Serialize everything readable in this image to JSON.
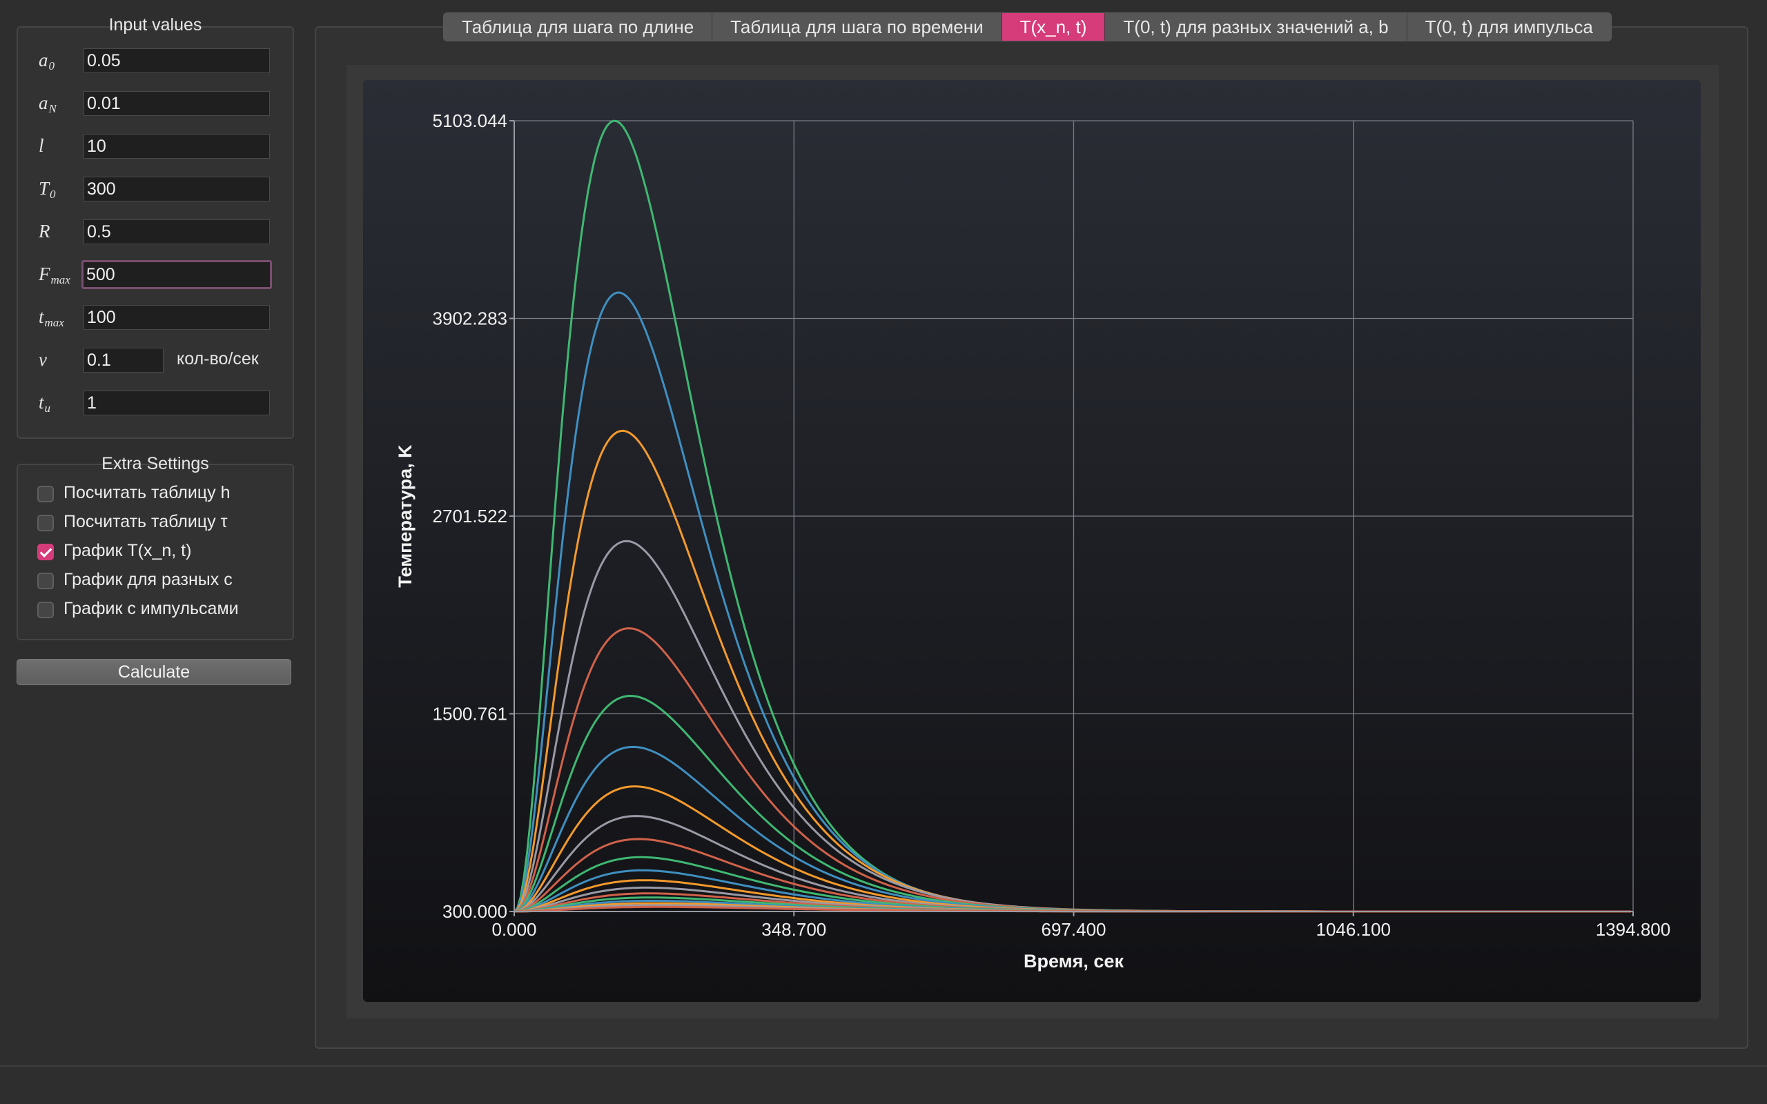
{
  "input_group": {
    "title": "Input values",
    "fields": [
      {
        "label": "a",
        "sub": "0",
        "value": "0.05"
      },
      {
        "label": "a",
        "sub": "N",
        "value": "0.01"
      },
      {
        "label": "l",
        "sub": "",
        "value": "10"
      },
      {
        "label": "T",
        "sub": "0",
        "value": "300"
      },
      {
        "label": "R",
        "sub": "",
        "value": "0.5"
      },
      {
        "label": "F",
        "sub": "max",
        "value": "500"
      },
      {
        "label": "t",
        "sub": "max",
        "value": "100"
      },
      {
        "label": "ν",
        "sub": "",
        "value": "0.1"
      },
      {
        "label": "t",
        "sub": "u",
        "value": "1"
      }
    ],
    "nu_unit": "кол-во/сек"
  },
  "extra_group": {
    "title": "Extra Settings",
    "options": [
      {
        "label": "Посчитать таблицу h",
        "checked": false
      },
      {
        "label": "Посчитать таблицу τ",
        "checked": false
      },
      {
        "label": "График T(x_n, t)",
        "checked": true
      },
      {
        "label": "График для разных c",
        "checked": false
      },
      {
        "label": "График с импульсами",
        "checked": false
      }
    ]
  },
  "calculate_label": "Calculate",
  "tabs": [
    {
      "label": "Таблица для шага по длине",
      "active": false
    },
    {
      "label": "Таблица для шага по времени",
      "active": false
    },
    {
      "label": "T(x_n, t)",
      "active": true
    },
    {
      "label": "T(0, t) для разных значений a, b",
      "active": false
    },
    {
      "label": "T(0, t) для импульса",
      "active": false
    }
  ],
  "chart_data": {
    "type": "line",
    "title": "",
    "xlabel": "Время, сек",
    "ylabel": "Температура, K",
    "xlim": [
      0,
      1394.8
    ],
    "ylim": [
      300,
      5103.044
    ],
    "x_ticks": [
      "0.000",
      "348.700",
      "697.400",
      "1046.100",
      "1394.800"
    ],
    "y_ticks": [
      "300.000",
      "1500.761",
      "2701.522",
      "3902.283",
      "5103.044"
    ],
    "grid": true,
    "legend": "none",
    "series": [
      {
        "peak_t": 125,
        "peak_T": 5103,
        "color": "#3fb872"
      },
      {
        "peak_t": 130,
        "peak_T": 4060,
        "color": "#3f8fc0"
      },
      {
        "peak_t": 135,
        "peak_T": 3220,
        "color": "#f39a2b"
      },
      {
        "peak_t": 140,
        "peak_T": 2550,
        "color": "#9a9aa6"
      },
      {
        "peak_t": 143,
        "peak_T": 2020,
        "color": "#d0624a"
      },
      {
        "peak_t": 145,
        "peak_T": 1610,
        "color": "#3fb872"
      },
      {
        "peak_t": 148,
        "peak_T": 1300,
        "color": "#3f8fc0"
      },
      {
        "peak_t": 150,
        "peak_T": 1060,
        "color": "#f39a2b"
      },
      {
        "peak_t": 152,
        "peak_T": 880,
        "color": "#9a9aa6"
      },
      {
        "peak_t": 155,
        "peak_T": 740,
        "color": "#d0624a"
      },
      {
        "peak_t": 158,
        "peak_T": 630,
        "color": "#3fb872"
      },
      {
        "peak_t": 160,
        "peak_T": 550,
        "color": "#3f8fc0"
      },
      {
        "peak_t": 162,
        "peak_T": 490,
        "color": "#f39a2b"
      },
      {
        "peak_t": 165,
        "peak_T": 445,
        "color": "#9a9aa6"
      },
      {
        "peak_t": 168,
        "peak_T": 410,
        "color": "#d0624a"
      },
      {
        "peak_t": 170,
        "peak_T": 385,
        "color": "#3fb872"
      },
      {
        "peak_t": 172,
        "peak_T": 365,
        "color": "#3f8fc0"
      },
      {
        "peak_t": 175,
        "peak_T": 350,
        "color": "#f39a2b"
      },
      {
        "peak_t": 178,
        "peak_T": 338,
        "color": "#9a9aa6"
      },
      {
        "peak_t": 180,
        "peak_T": 328,
        "color": "#d0624a"
      }
    ]
  }
}
